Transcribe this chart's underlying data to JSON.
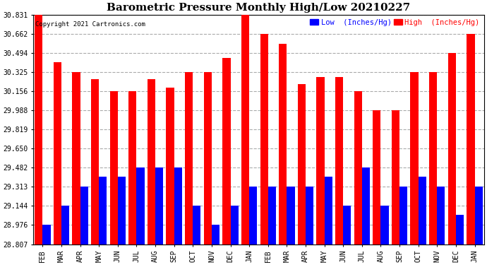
{
  "title": "Barometric Pressure Monthly High/Low 20210227",
  "copyright": "Copyright 2021 Cartronics.com",
  "legend_low": "Low  (Inches/Hg)",
  "legend_high": "High  (Inches/Hg)",
  "categories": [
    "FEB",
    "MAR",
    "APR",
    "MAY",
    "JUN",
    "JUL",
    "AUG",
    "SEP",
    "OCT",
    "NOV",
    "DEC",
    "JAN",
    "FEB",
    "MAR",
    "APR",
    "MAY",
    "JUN",
    "JUL",
    "AUG",
    "SEP",
    "OCT",
    "NOV",
    "DEC",
    "JAN"
  ],
  "high_values": [
    30.831,
    30.41,
    30.325,
    30.26,
    30.156,
    30.156,
    30.26,
    30.19,
    30.325,
    30.325,
    30.45,
    30.831,
    30.662,
    30.575,
    30.22,
    30.28,
    30.28,
    30.156,
    29.988,
    29.988,
    30.325,
    30.325,
    30.494,
    30.662
  ],
  "low_values": [
    28.976,
    29.144,
    29.313,
    29.4,
    29.4,
    29.482,
    29.482,
    29.482,
    29.144,
    28.976,
    29.144,
    29.313,
    29.313,
    29.313,
    29.313,
    29.4,
    29.144,
    29.482,
    29.144,
    29.313,
    29.4,
    29.313,
    29.065,
    29.313
  ],
  "ymin": 28.807,
  "ymax": 30.831,
  "yticks": [
    28.807,
    28.976,
    29.144,
    29.313,
    29.482,
    29.65,
    29.819,
    29.988,
    30.156,
    30.325,
    30.494,
    30.662,
    30.831
  ],
  "ytick_labels": [
    "28.807",
    "28.976",
    "29.144",
    "29.313",
    "29.482",
    "29.650",
    "29.819",
    "29.988",
    "30.156",
    "30.325",
    "30.494",
    "30.662",
    "30.831"
  ],
  "bar_color_high": "#ff0000",
  "bar_color_low": "#0000ff",
  "background_color": "#ffffff",
  "grid_color": "#aaaaaa",
  "title_fontsize": 11,
  "tick_fontsize": 7,
  "bar_width": 0.42
}
